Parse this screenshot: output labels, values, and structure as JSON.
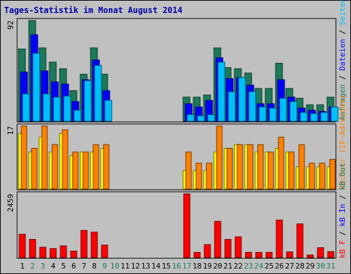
{
  "title": "Tages-Statistik im Monat August 2014",
  "chart_data": {
    "type": "bar",
    "x": [
      "1",
      "2",
      "3",
      "4",
      "5",
      "6",
      "7",
      "8",
      "9",
      "10",
      "11",
      "12",
      "13",
      "14",
      "15",
      "16",
      "17",
      "18",
      "19",
      "20",
      "21",
      "22",
      "23",
      "24",
      "25",
      "26",
      "27",
      "28",
      "29",
      "30",
      "31"
    ],
    "weekend_days": [
      "2",
      "3",
      "9",
      "10",
      "16",
      "17",
      "23",
      "24",
      "30",
      "31"
    ],
    "panels": [
      {
        "name": "Anfragen / Dateien / Seiten / Besuche",
        "max_label": "92",
        "ylim": [
          0,
          92
        ],
        "series": [
          {
            "name": "Anfragen",
            "color": "#1c7a5a",
            "values": [
              66,
              92,
              67,
              54,
              48,
              28,
              43,
              67,
              43,
              0,
              0,
              0,
              0,
              0,
              0,
              0,
              22,
              22,
              24,
              67,
              49,
              48,
              44,
              30,
              30,
              53,
              30,
              21,
              15,
              15,
              22
            ]
          },
          {
            "name": "Dateien",
            "color": "#0000ff",
            "values": [
              45,
              79,
              46,
              36,
              34,
              18,
              38,
              56,
              28,
              0,
              0,
              0,
              0,
              0,
              0,
              0,
              16,
              13,
              19,
              58,
              39,
              40,
              33,
              16,
              16,
              38,
              22,
              12,
              10,
              9,
              13
            ]
          },
          {
            "name": "Seiten",
            "color": "#00bfff",
            "values": [
              25,
              62,
              25,
              22,
              23,
              10,
              37,
              51,
              19,
              0,
              0,
              0,
              0,
              0,
              0,
              0,
              6,
              5,
              6,
              54,
              27,
              40,
              27,
              13,
              12,
              21,
              18,
              8,
              7,
              8,
              13
            ]
          }
        ]
      },
      {
        "name": "Besuche / Rechner (IP-Adressen)",
        "max_label": "17",
        "ylim": [
          0,
          17
        ],
        "series": [
          {
            "name": "Besuche",
            "color": "#ffff00",
            "values": [
              15,
              10,
              14,
              10,
              15,
              9,
              10,
              10,
              11,
              0,
              0,
              0,
              0,
              0,
              0,
              0,
              5,
              5,
              5,
              10,
              11,
              12,
              12,
              10,
              10,
              11,
              10,
              6,
              6,
              6,
              6
            ]
          },
          {
            "name": "Rechner (IP-Adressen)",
            "color": "#ff8000",
            "values": [
              17,
              11,
              17,
              12,
              16,
              10,
              10,
              12,
              12,
              0,
              0,
              0,
              0,
              0,
              0,
              0,
              10,
              7,
              7,
              17,
              11,
              12,
              12,
              12,
              10,
              14,
              10,
              12,
              7,
              7,
              8
            ]
          }
        ]
      },
      {
        "name": "kB F / kB In / kB Out",
        "max_label": "2459",
        "ylim": [
          0,
          2459
        ],
        "series": [
          {
            "name": "kB F",
            "color": "#ff0000",
            "values": [
              900,
              700,
              400,
              350,
              450,
              250,
              1050,
              980,
              480,
              0,
              0,
              0,
              0,
              0,
              0,
              0,
              2459,
              200,
              500,
              1400,
              700,
              800,
              200,
              200,
              200,
              1450,
              220,
              1300,
              100,
              380,
              230
            ]
          }
        ]
      }
    ],
    "side_legends": [
      [
        {
          "text": "Anfragen",
          "color": "#1c7a5a"
        },
        {
          "text": " / ",
          "color": "#000000"
        },
        {
          "text": "Dateien",
          "color": "#0000ff"
        },
        {
          "text": " / ",
          "color": "#000000"
        },
        {
          "text": "Seiten",
          "color": "#00bfff"
        },
        {
          "text": " / ",
          "color": "#000000"
        },
        {
          "text": "Besuche",
          "color": "#ffff00"
        }
      ],
      [
        {
          "text": "Rechner (IP-Adressen)",
          "color": "#ff8000"
        }
      ],
      [
        {
          "text": "kB F",
          "color": "#ff0000"
        },
        {
          "text": " / ",
          "color": "#000000"
        },
        {
          "text": "kB In",
          "color": "#0000ff"
        },
        {
          "text": " / ",
          "color": "#000000"
        },
        {
          "text": "kB Out",
          "color": "#1c7a5a"
        }
      ]
    ],
    "grid": false
  }
}
